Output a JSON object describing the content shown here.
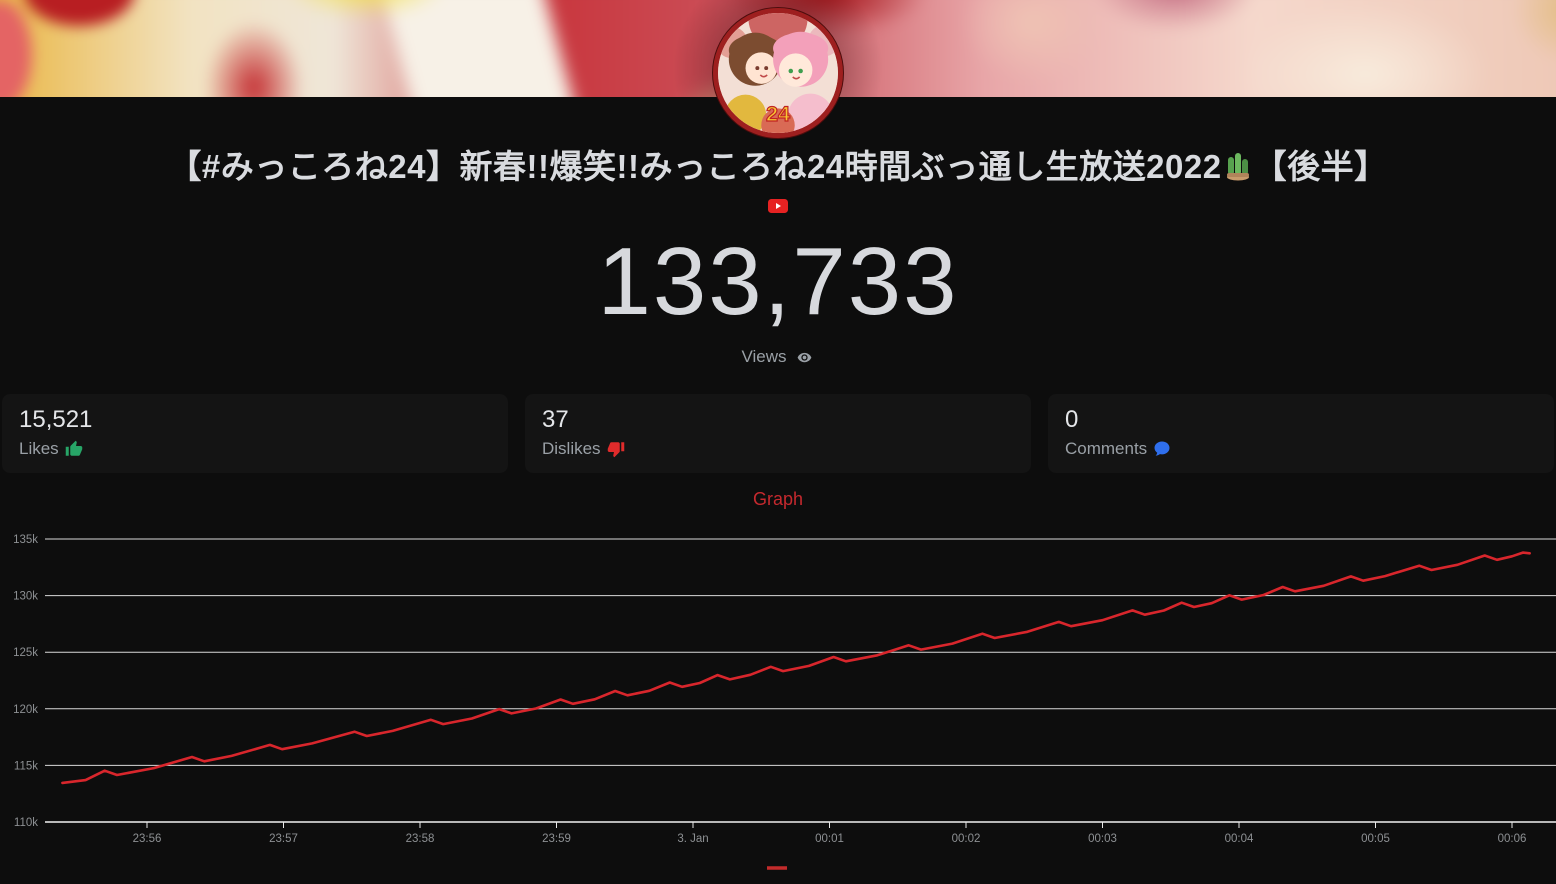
{
  "page": {
    "background": "#0d0d0d",
    "accent_red": "#d8262c"
  },
  "header": {
    "avatar_badge": "24",
    "title_part1": "【#みっころね24】新春!!爆笑!!みっころね24時間ぶっ通し生放送2022",
    "title_emoji": "🎍",
    "title_part2": "【後半】",
    "platform": "YouTube"
  },
  "counter": {
    "views_value": "133,733",
    "views_label": "Views"
  },
  "stats": [
    {
      "value": "15,521",
      "label": "Likes",
      "icon": "thumbs-up-icon",
      "icon_color": "#27a567"
    },
    {
      "value": "37",
      "label": "Dislikes",
      "icon": "thumbs-down-icon",
      "icon_color": "#e02b2b"
    },
    {
      "value": "0",
      "label": "Comments",
      "icon": "speech-bubble-icon",
      "icon_color": "#2f6fed"
    }
  ],
  "graph": {
    "title": "Graph",
    "title_color": "#c5292e"
  },
  "chart_data": {
    "type": "line",
    "title": "Graph",
    "x_axis": {
      "tick_labels": [
        "23:56",
        "23:57",
        "23:58",
        "23:59",
        "3. Jan",
        "00:01",
        "00:02",
        "00:03",
        "00:04",
        "00:05",
        "00:06"
      ],
      "tick_minutes": [
        0,
        1,
        2,
        3,
        4,
        5,
        6,
        7,
        8,
        9,
        10
      ]
    },
    "y_axis": {
      "tick_labels": [
        "110k",
        "115k",
        "120k",
        "125k",
        "130k",
        "135k"
      ],
      "tick_values": [
        110000,
        115000,
        120000,
        125000,
        130000,
        135000
      ],
      "range": [
        110000,
        135000
      ]
    },
    "grid": "horizontal-only",
    "legend": {
      "symbol": "dash",
      "position": "bottom-center",
      "color": "#c32b2b"
    },
    "series": [
      {
        "name": "Views",
        "color": "#d8262c",
        "points_t_views": [
          [
            -0.62,
            113450
          ],
          [
            -0.45,
            113700
          ],
          [
            -0.31,
            114530
          ],
          [
            -0.22,
            114150
          ],
          [
            0.05,
            114760
          ],
          [
            0.33,
            115740
          ],
          [
            0.42,
            115360
          ],
          [
            0.62,
            115840
          ],
          [
            0.9,
            116810
          ],
          [
            0.99,
            116430
          ],
          [
            1.21,
            116940
          ],
          [
            1.52,
            117980
          ],
          [
            1.61,
            117600
          ],
          [
            1.8,
            118050
          ],
          [
            2.08,
            119030
          ],
          [
            2.17,
            118650
          ],
          [
            2.38,
            119140
          ],
          [
            2.58,
            119970
          ],
          [
            2.67,
            119590
          ],
          [
            2.85,
            120030
          ],
          [
            3.03,
            120820
          ],
          [
            3.12,
            120440
          ],
          [
            3.28,
            120840
          ],
          [
            3.43,
            121570
          ],
          [
            3.52,
            121190
          ],
          [
            3.68,
            121590
          ],
          [
            3.83,
            122320
          ],
          [
            3.92,
            121940
          ],
          [
            4.05,
            122280
          ],
          [
            4.18,
            122980
          ],
          [
            4.27,
            122600
          ],
          [
            4.42,
            123000
          ],
          [
            4.57,
            123710
          ],
          [
            4.66,
            123330
          ],
          [
            4.85,
            123790
          ],
          [
            5.03,
            124580
          ],
          [
            5.12,
            124200
          ],
          [
            5.35,
            124730
          ],
          [
            5.58,
            125610
          ],
          [
            5.67,
            125230
          ],
          [
            5.9,
            125760
          ],
          [
            6.12,
            126630
          ],
          [
            6.21,
            126250
          ],
          [
            6.45,
            126800
          ],
          [
            6.68,
            127680
          ],
          [
            6.77,
            127300
          ],
          [
            7.0,
            127830
          ],
          [
            7.22,
            128690
          ],
          [
            7.31,
            128310
          ],
          [
            7.45,
            128680
          ],
          [
            7.58,
            129370
          ],
          [
            7.67,
            128990
          ],
          [
            7.8,
            129330
          ],
          [
            7.93,
            130030
          ],
          [
            8.02,
            129650
          ],
          [
            8.18,
            130050
          ],
          [
            8.32,
            130760
          ],
          [
            8.41,
            130380
          ],
          [
            8.62,
            130870
          ],
          [
            8.82,
            131700
          ],
          [
            8.91,
            131320
          ],
          [
            9.07,
            131720
          ],
          [
            9.32,
            132640
          ],
          [
            9.41,
            132260
          ],
          [
            9.6,
            132720
          ],
          [
            9.8,
            133540
          ],
          [
            9.89,
            133160
          ],
          [
            10.0,
            133470
          ],
          [
            10.08,
            133800
          ],
          [
            10.13,
            133733
          ]
        ]
      }
    ]
  }
}
